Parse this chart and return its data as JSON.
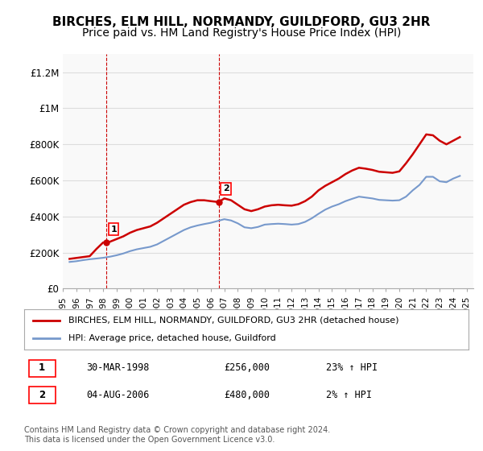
{
  "title": "BIRCHES, ELM HILL, NORMANDY, GUILDFORD, GU3 2HR",
  "subtitle": "Price paid vs. HM Land Registry's House Price Index (HPI)",
  "title_fontsize": 11,
  "subtitle_fontsize": 10,
  "background_color": "#ffffff",
  "plot_bg_color": "#f9f9f9",
  "grid_color": "#dddddd",
  "red_line_color": "#cc0000",
  "blue_line_color": "#7799cc",
  "ylabel_values": [
    "£0",
    "£200K",
    "£400K",
    "£600K",
    "£800K",
    "£1M",
    "£1.2M"
  ],
  "yticks": [
    0,
    200000,
    400000,
    600000,
    800000,
    1000000,
    1200000
  ],
  "ylim": [
    0,
    1300000
  ],
  "xlim_start": 1995.0,
  "xlim_end": 2025.5,
  "point1_x": 1998.25,
  "point1_y": 256000,
  "point1_label": "1",
  "point2_x": 2006.58,
  "point2_y": 480000,
  "point2_label": "2",
  "legend_line1": "BIRCHES, ELM HILL, NORMANDY, GUILDFORD, GU3 2HR (detached house)",
  "legend_line2": "HPI: Average price, detached house, Guildford",
  "table_row1": [
    "1",
    "30-MAR-1998",
    "£256,000",
    "23% ↑ HPI"
  ],
  "table_row2": [
    "2",
    "04-AUG-2006",
    "£480,000",
    "2% ↑ HPI"
  ],
  "footer": "Contains HM Land Registry data © Crown copyright and database right 2024.\nThis data is licensed under the Open Government Licence v3.0.",
  "xtick_years": [
    1995,
    1996,
    1997,
    1998,
    1999,
    2000,
    2001,
    2002,
    2003,
    2004,
    2005,
    2006,
    2007,
    2008,
    2009,
    2010,
    2011,
    2012,
    2013,
    2014,
    2015,
    2016,
    2017,
    2018,
    2019,
    2020,
    2021,
    2022,
    2023,
    2024,
    2025
  ],
  "hpi_x": [
    1995.5,
    1996.0,
    1996.5,
    1997.0,
    1997.5,
    1998.0,
    1998.5,
    1999.0,
    1999.5,
    2000.0,
    2000.5,
    2001.0,
    2001.5,
    2002.0,
    2002.5,
    2003.0,
    2003.5,
    2004.0,
    2004.5,
    2005.0,
    2005.5,
    2006.0,
    2006.5,
    2007.0,
    2007.5,
    2008.0,
    2008.5,
    2009.0,
    2009.5,
    2010.0,
    2010.5,
    2011.0,
    2011.5,
    2012.0,
    2012.5,
    2013.0,
    2013.5,
    2014.0,
    2014.5,
    2015.0,
    2015.5,
    2016.0,
    2016.5,
    2017.0,
    2017.5,
    2018.0,
    2018.5,
    2019.0,
    2019.5,
    2020.0,
    2020.5,
    2021.0,
    2021.5,
    2022.0,
    2022.5,
    2023.0,
    2023.5,
    2024.0,
    2024.5
  ],
  "hpi_y": [
    148000,
    152000,
    158000,
    163000,
    167000,
    171000,
    177000,
    185000,
    195000,
    208000,
    218000,
    225000,
    232000,
    245000,
    265000,
    285000,
    305000,
    325000,
    340000,
    350000,
    358000,
    365000,
    375000,
    385000,
    378000,
    362000,
    340000,
    335000,
    342000,
    355000,
    358000,
    360000,
    358000,
    355000,
    358000,
    370000,
    390000,
    415000,
    438000,
    455000,
    468000,
    485000,
    498000,
    510000,
    505000,
    500000,
    492000,
    490000,
    488000,
    490000,
    510000,
    545000,
    575000,
    620000,
    620000,
    595000,
    590000,
    610000,
    625000
  ],
  "red_x": [
    1995.5,
    1996.0,
    1996.5,
    1997.0,
    1997.5,
    1998.0,
    1998.25,
    1998.5,
    1999.0,
    1999.5,
    2000.0,
    2000.5,
    2001.0,
    2001.5,
    2002.0,
    2002.5,
    2003.0,
    2003.5,
    2004.0,
    2004.5,
    2005.0,
    2005.5,
    2006.0,
    2006.58,
    2007.0,
    2007.5,
    2008.0,
    2008.5,
    2009.0,
    2009.5,
    2010.0,
    2010.5,
    2011.0,
    2011.5,
    2012.0,
    2012.5,
    2013.0,
    2013.5,
    2014.0,
    2014.5,
    2015.0,
    2015.5,
    2016.0,
    2016.5,
    2017.0,
    2017.5,
    2018.0,
    2018.5,
    2019.0,
    2019.5,
    2020.0,
    2020.5,
    2021.0,
    2021.5,
    2022.0,
    2022.5,
    2023.0,
    2023.5,
    2024.0,
    2024.5
  ],
  "red_y": [
    165000,
    170000,
    175000,
    180000,
    220000,
    256000,
    256000,
    260000,
    275000,
    290000,
    310000,
    325000,
    335000,
    345000,
    365000,
    390000,
    415000,
    440000,
    465000,
    480000,
    490000,
    490000,
    485000,
    480000,
    500000,
    490000,
    465000,
    440000,
    430000,
    440000,
    455000,
    462000,
    465000,
    462000,
    460000,
    468000,
    485000,
    510000,
    545000,
    570000,
    590000,
    610000,
    635000,
    655000,
    670000,
    665000,
    658000,
    648000,
    645000,
    642000,
    650000,
    695000,
    745000,
    800000,
    855000,
    850000,
    820000,
    800000,
    820000,
    840000
  ]
}
